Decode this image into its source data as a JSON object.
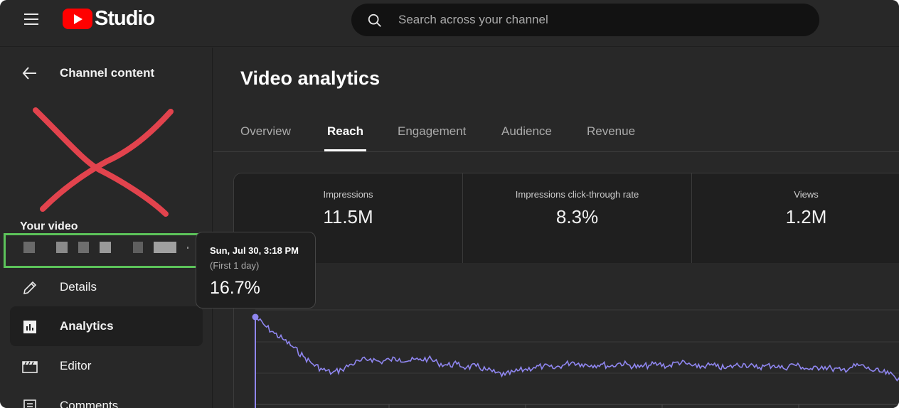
{
  "topbar": {
    "menu_icon": "hamburger-menu-icon",
    "logo_text": "Studio",
    "logo_color": "#ff0000",
    "search_icon": "search-icon",
    "search_placeholder": "Search across your channel"
  },
  "sidebar": {
    "back_icon": "arrow-left-icon",
    "back_label": "Channel content",
    "your_video_label": "Your video",
    "items": [
      {
        "label": "Details",
        "icon": "pencil-icon",
        "active": false
      },
      {
        "label": "Analytics",
        "icon": "bar-chart-icon",
        "active": true
      },
      {
        "label": "Editor",
        "icon": "clapperboard-icon",
        "active": false
      },
      {
        "label": "Comments",
        "icon": "comments-icon",
        "active": false
      }
    ]
  },
  "main": {
    "title": "Video analytics",
    "tabs": [
      {
        "label": "Overview",
        "active": false
      },
      {
        "label": "Reach",
        "active": true
      },
      {
        "label": "Engagement",
        "active": false
      },
      {
        "label": "Audience",
        "active": false
      },
      {
        "label": "Revenue",
        "active": false
      }
    ],
    "metrics": [
      {
        "label": "Impressions",
        "value": "11.5M"
      },
      {
        "label": "Impressions click-through rate",
        "value": "8.3%"
      },
      {
        "label": "Views",
        "value": "1.2M"
      }
    ]
  },
  "tooltip": {
    "date": "Sun, Jul 30, 3:18 PM",
    "sub": "(First 1 day)",
    "value": "16.7%"
  },
  "colors": {
    "line": "#8f86f0",
    "highlight_box": "#5cc35a",
    "x_mark": "#e2434d"
  },
  "chart_data": {
    "type": "line",
    "series": [
      {
        "values": [
          16.7,
          15.9,
          15.2,
          14.6,
          13.9,
          13.1,
          12.4,
          11.9,
          11.6,
          11.9,
          12.4,
          12.7,
          12.9,
          12.6,
          12.8,
          12.9,
          12.7,
          12.8,
          12.9,
          12.5,
          12.3,
          12.4,
          12.1,
          12.2,
          11.9,
          11.6,
          11.4,
          11.7,
          11.9,
          12.1,
          12.2,
          12.0,
          12.3,
          12.6,
          12.4,
          12.3,
          12.4,
          12.2,
          12.5,
          12.3,
          12.1,
          12.3,
          12.4,
          12.2,
          12.6,
          12.4,
          12.1,
          12.3,
          12.2,
          12.0,
          12.3,
          12.4,
          12.1,
          12.2,
          12.3,
          12.0,
          12.4,
          12.1,
          11.9,
          12.2,
          12.0,
          11.8,
          12.1,
          12.3,
          11.9,
          11.7,
          11.5,
          11.1,
          10.6
        ]
      }
    ]
  }
}
